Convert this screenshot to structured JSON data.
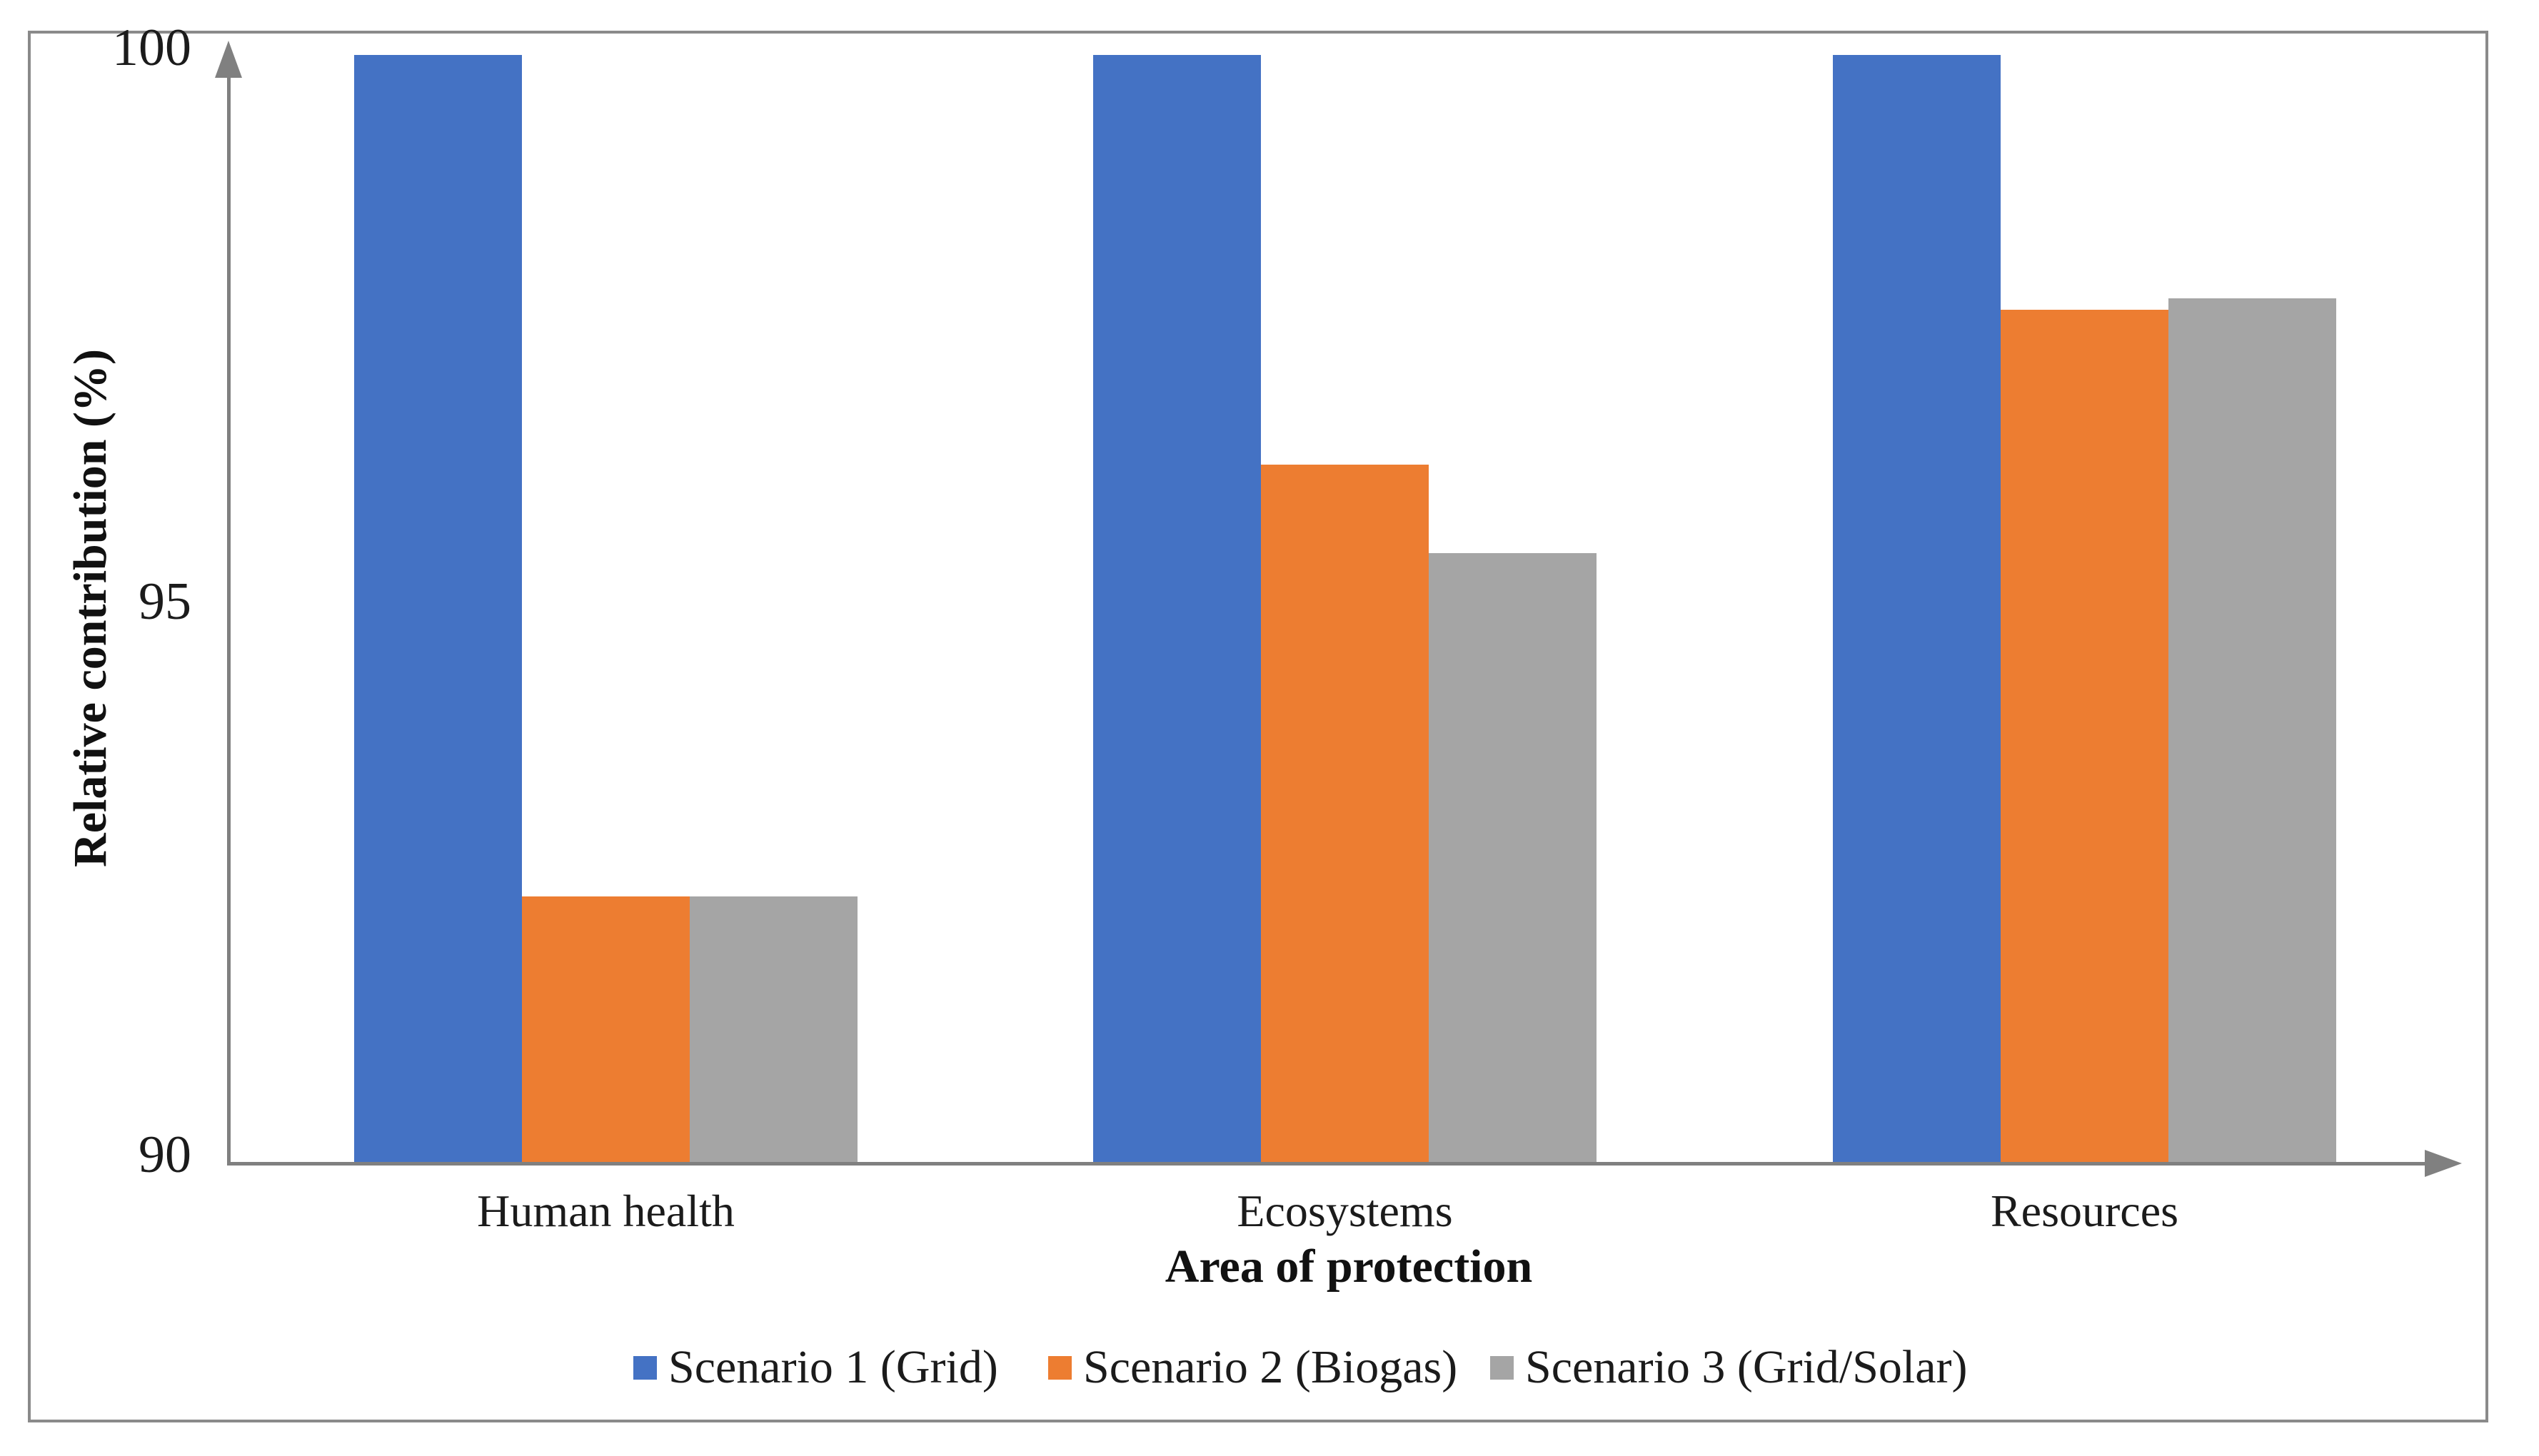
{
  "chart_data": {
    "type": "bar",
    "title": "",
    "categories": [
      "Human health",
      "Ecosystems",
      "Resources"
    ],
    "series": [
      {
        "name": "Scenario 1 (Grid)",
        "color": "#4472C4",
        "values": [
          100,
          100,
          100
        ]
      },
      {
        "name": "Scenario 2 (Biogas)",
        "color": "#ED7D31",
        "values": [
          92.4,
          96.3,
          97.7
        ]
      },
      {
        "name": "Scenario 3 (Grid/Solar)",
        "color": "#A5A5A5",
        "values": [
          92.4,
          95.5,
          97.8
        ]
      }
    ],
    "xlabel": "Area of protection",
    "ylabel": "Relative contribution (%)",
    "ylim": [
      90,
      100
    ],
    "yticks": [
      90,
      95,
      100
    ],
    "ytick_labels": [
      "90",
      "95",
      "100"
    ],
    "grid": false,
    "legend_position": "bottom",
    "axis_color": "#808080",
    "frame_color": "#8a8a8a"
  }
}
